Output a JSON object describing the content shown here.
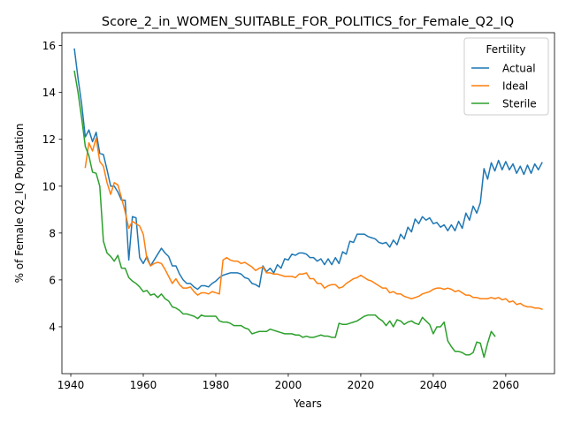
{
  "chart_data": {
    "type": "line",
    "title": "Score_2_in_WOMEN_SUITABLE_FOR_POLITICS_for_Female_Q2_IQ",
    "xlabel": "Years",
    "ylabel": "% of Female Q2_IQ Population",
    "xlim": [
      1937.55,
      2073.45
    ],
    "ylim": [
      2.0,
      16.55
    ],
    "xticks": [
      1940,
      1960,
      1980,
      2000,
      2020,
      2040,
      2060
    ],
    "yticks": [
      4,
      6,
      8,
      10,
      12,
      14,
      16
    ],
    "xtick_labels": [
      "1940",
      "1960",
      "1980",
      "2000",
      "2020",
      "2040",
      "2060"
    ],
    "ytick_labels": [
      "4",
      "6",
      "8",
      "10",
      "12",
      "14",
      "16"
    ],
    "grid": false,
    "legend": {
      "title": "Fertility",
      "position": "top-right"
    },
    "series": [
      {
        "name": "Actual",
        "color": "#1f77b4",
        "x": [
          1941,
          1942,
          1943,
          1944,
          1945,
          1946,
          1947,
          1948,
          1949,
          1950,
          1951,
          1952,
          1953,
          1954,
          1955,
          1956,
          1957,
          1958,
          1959,
          1960,
          1961,
          1962,
          1963,
          1964,
          1965,
          1966,
          1967,
          1968,
          1969,
          1970,
          1971,
          1972,
          1973,
          1974,
          1975,
          1976,
          1977,
          1978,
          1979,
          1980,
          1981,
          1982,
          1983,
          1984,
          1985,
          1986,
          1987,
          1988,
          1989,
          1990,
          1991,
          1992,
          1993,
          1994,
          1995,
          1996,
          1997,
          1998,
          1999,
          2000,
          2001,
          2002,
          2003,
          2004,
          2005,
          2006,
          2007,
          2008,
          2009,
          2010,
          2011,
          2012,
          2013,
          2014,
          2015,
          2016,
          2017,
          2018,
          2019,
          2020,
          2021,
          2022,
          2023,
          2024,
          2025,
          2026,
          2027,
          2028,
          2029,
          2030,
          2031,
          2032,
          2033,
          2034,
          2035,
          2036,
          2037,
          2038,
          2039,
          2040,
          2041,
          2042,
          2043,
          2044,
          2045,
          2046,
          2047,
          2048,
          2049,
          2050,
          2051,
          2052,
          2053,
          2054,
          2055,
          2056,
          2057,
          2058,
          2059,
          2060,
          2061,
          2062,
          2063,
          2064,
          2065,
          2066,
          2067,
          2068,
          2069,
          2070
        ],
        "values": [
          15.85,
          14.6,
          13.5,
          12.1,
          12.4,
          11.9,
          12.3,
          11.4,
          11.35,
          10.7,
          10.0,
          10.0,
          9.75,
          9.4,
          9.4,
          6.85,
          8.7,
          8.65,
          6.95,
          6.7,
          7.0,
          6.6,
          6.85,
          7.1,
          7.35,
          7.15,
          7.0,
          6.6,
          6.6,
          6.25,
          6.0,
          5.85,
          5.85,
          5.7,
          5.6,
          5.75,
          5.75,
          5.7,
          5.85,
          5.95,
          6.1,
          6.2,
          6.25,
          6.3,
          6.3,
          6.3,
          6.25,
          6.1,
          6.05,
          5.85,
          5.8,
          5.7,
          6.6,
          6.35,
          6.5,
          6.3,
          6.65,
          6.5,
          6.9,
          6.85,
          7.1,
          7.05,
          7.15,
          7.15,
          7.1,
          6.95,
          6.95,
          6.8,
          6.9,
          6.65,
          6.9,
          6.65,
          6.95,
          6.7,
          7.2,
          7.1,
          7.65,
          7.6,
          7.95,
          7.95,
          7.95,
          7.85,
          7.8,
          7.75,
          7.6,
          7.55,
          7.6,
          7.4,
          7.7,
          7.5,
          7.95,
          7.75,
          8.25,
          8.05,
          8.6,
          8.4,
          8.7,
          8.55,
          8.65,
          8.4,
          8.45,
          8.25,
          8.35,
          8.1,
          8.35,
          8.1,
          8.5,
          8.2,
          8.85,
          8.55,
          9.15,
          8.85,
          9.3,
          10.75,
          10.3,
          11.0,
          10.65,
          11.1,
          10.7,
          11.05,
          10.7,
          10.95,
          10.55,
          10.85,
          10.5,
          10.9,
          10.55,
          10.95,
          10.7,
          11.0
        ]
      },
      {
        "name": "Ideal",
        "color": "#ff7f0e",
        "x": [
          1944,
          1945,
          1946,
          1947,
          1948,
          1949,
          1950,
          1951,
          1952,
          1953,
          1954,
          1955,
          1956,
          1957,
          1958,
          1959,
          1960,
          1961,
          1962,
          1963,
          1964,
          1965,
          1966,
          1967,
          1968,
          1969,
          1970,
          1971,
          1972,
          1973,
          1974,
          1975,
          1976,
          1977,
          1978,
          1979,
          1980,
          1981,
          1982,
          1983,
          1984,
          1985,
          1986,
          1987,
          1988,
          1989,
          1990,
          1991,
          1992,
          1993,
          1994,
          1995,
          1996,
          1997,
          1998,
          1999,
          2000,
          2001,
          2002,
          2003,
          2004,
          2005,
          2006,
          2007,
          2008,
          2009,
          2010,
          2011,
          2012,
          2013,
          2014,
          2015,
          2016,
          2017,
          2018,
          2019,
          2020,
          2021,
          2022,
          2023,
          2024,
          2025,
          2026,
          2027,
          2028,
          2029,
          2030,
          2031,
          2032,
          2033,
          2034,
          2035,
          2036,
          2037,
          2038,
          2039,
          2040,
          2041,
          2042,
          2043,
          2044,
          2045,
          2046,
          2047,
          2048,
          2049,
          2050,
          2051,
          2052,
          2053,
          2054,
          2055,
          2056,
          2057,
          2058,
          2059,
          2060,
          2061,
          2062,
          2063,
          2064,
          2065,
          2066,
          2067,
          2068,
          2069,
          2070
        ],
        "values": [
          10.8,
          11.85,
          11.5,
          12.05,
          11.05,
          10.85,
          10.15,
          9.65,
          10.15,
          10.05,
          9.5,
          8.9,
          8.2,
          8.5,
          8.4,
          8.3,
          7.95,
          6.9,
          6.6,
          6.7,
          6.75,
          6.7,
          6.45,
          6.15,
          5.85,
          6.05,
          5.8,
          5.65,
          5.65,
          5.7,
          5.5,
          5.35,
          5.45,
          5.45,
          5.4,
          5.5,
          5.45,
          5.4,
          6.85,
          6.95,
          6.85,
          6.8,
          6.8,
          6.7,
          6.75,
          6.65,
          6.55,
          6.4,
          6.5,
          6.55,
          6.3,
          6.3,
          6.25,
          6.25,
          6.2,
          6.15,
          6.15,
          6.15,
          6.1,
          6.25,
          6.25,
          6.3,
          6.05,
          6.05,
          5.85,
          5.85,
          5.65,
          5.75,
          5.8,
          5.8,
          5.65,
          5.7,
          5.85,
          5.95,
          6.05,
          6.1,
          6.2,
          6.1,
          6.0,
          5.95,
          5.85,
          5.75,
          5.65,
          5.65,
          5.45,
          5.5,
          5.4,
          5.4,
          5.3,
          5.25,
          5.2,
          5.25,
          5.3,
          5.4,
          5.45,
          5.5,
          5.6,
          5.65,
          5.65,
          5.6,
          5.65,
          5.6,
          5.5,
          5.55,
          5.45,
          5.35,
          5.35,
          5.25,
          5.25,
          5.2,
          5.2,
          5.2,
          5.25,
          5.2,
          5.25,
          5.15,
          5.2,
          5.05,
          5.1,
          4.95,
          5.0,
          4.9,
          4.85,
          4.85,
          4.8,
          4.8,
          4.75
        ]
      },
      {
        "name": "Sterile",
        "color": "#2ca02c",
        "x": [
          1941,
          1942,
          1943,
          1944,
          1945,
          1946,
          1947,
          1948,
          1949,
          1950,
          1951,
          1952,
          1953,
          1954,
          1955,
          1956,
          1957,
          1958,
          1959,
          1960,
          1961,
          1962,
          1963,
          1964,
          1965,
          1966,
          1967,
          1968,
          1969,
          1970,
          1971,
          1972,
          1973,
          1974,
          1975,
          1976,
          1977,
          1978,
          1979,
          1980,
          1981,
          1982,
          1983,
          1984,
          1985,
          1986,
          1987,
          1988,
          1989,
          1990,
          1991,
          1992,
          1993,
          1994,
          1995,
          1996,
          1997,
          1998,
          1999,
          2000,
          2001,
          2002,
          2003,
          2004,
          2005,
          2006,
          2007,
          2008,
          2009,
          2010,
          2011,
          2012,
          2013,
          2014,
          2015,
          2016,
          2017,
          2018,
          2019,
          2020,
          2021,
          2022,
          2023,
          2024,
          2025,
          2026,
          2027,
          2028,
          2029,
          2030,
          2031,
          2032,
          2033,
          2034,
          2035,
          2036,
          2037,
          2038,
          2039,
          2040,
          2041,
          2042,
          2043,
          2044,
          2045,
          2046,
          2047,
          2048,
          2049,
          2050,
          2051,
          2052,
          2053,
          2054,
          2055,
          2056,
          2057
        ],
        "values": [
          14.9,
          14.0,
          12.9,
          11.7,
          11.3,
          10.6,
          10.55,
          10.0,
          7.65,
          7.15,
          7.0,
          6.8,
          7.05,
          6.5,
          6.5,
          6.1,
          5.95,
          5.85,
          5.7,
          5.5,
          5.55,
          5.35,
          5.4,
          5.25,
          5.4,
          5.2,
          5.1,
          4.85,
          4.8,
          4.7,
          4.55,
          4.55,
          4.5,
          4.45,
          4.35,
          4.5,
          4.45,
          4.45,
          4.45,
          4.45,
          4.25,
          4.2,
          4.2,
          4.15,
          4.05,
          4.05,
          4.05,
          3.95,
          3.9,
          3.7,
          3.75,
          3.8,
          3.8,
          3.8,
          3.9,
          3.85,
          3.8,
          3.75,
          3.7,
          3.7,
          3.7,
          3.65,
          3.65,
          3.55,
          3.6,
          3.55,
          3.55,
          3.6,
          3.65,
          3.6,
          3.6,
          3.55,
          3.55,
          4.15,
          4.1,
          4.1,
          4.15,
          4.2,
          4.25,
          4.35,
          4.45,
          4.5,
          4.5,
          4.5,
          4.35,
          4.25,
          4.05,
          4.25,
          4.0,
          4.3,
          4.25,
          4.1,
          4.2,
          4.25,
          4.15,
          4.1,
          4.4,
          4.25,
          4.1,
          3.7,
          4.0,
          4.0,
          4.2,
          3.4,
          3.15,
          2.95,
          2.95,
          2.9,
          2.8,
          2.8,
          2.9,
          3.35,
          3.3,
          2.7,
          3.3,
          3.8,
          3.6
        ]
      }
    ]
  }
}
